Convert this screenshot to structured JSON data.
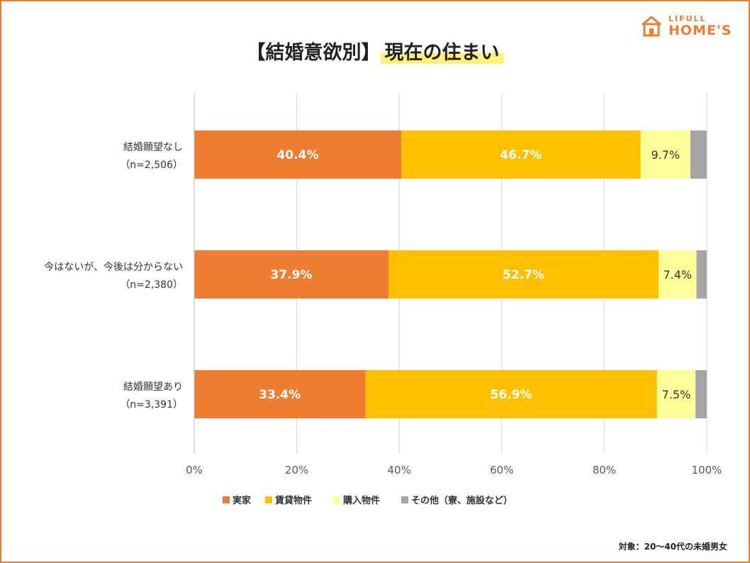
{
  "title": {
    "prefix": "【結婚意欲別】",
    "highlight": "現在の住まい"
  },
  "logo": {
    "top": "LIFULL",
    "bottom": "HOME'S",
    "icon": "house-icon",
    "color": "#ED7D31"
  },
  "footnote": "対象：20～40代の未婚男女",
  "chart_data": {
    "type": "bar",
    "orientation": "horizontal",
    "stacked": true,
    "percent": true,
    "categories": [
      {
        "label": "結婚願望なし",
        "n": "（n=2,506）"
      },
      {
        "label": "今はないが、今後は分からない",
        "n": "（n=2,380）"
      },
      {
        "label": "結婚願望あり",
        "n": "（n=3,391）"
      }
    ],
    "series": [
      {
        "name": "実家",
        "color": "#ED7D31",
        "label_color": "#ffffff",
        "values": [
          40.4,
          37.9,
          33.4
        ],
        "labels": [
          "40.4%",
          "37.9%",
          "33.4%"
        ]
      },
      {
        "name": "賃貸物件",
        "color": "#FFC000",
        "label_color": "#ffffff",
        "values": [
          46.7,
          52.7,
          56.9
        ],
        "labels": [
          "46.7%",
          "52.7%",
          "56.9%"
        ]
      },
      {
        "name": "購入物件",
        "color": "#FFFF99",
        "label_color": "#333333",
        "values": [
          9.7,
          7.4,
          7.5
        ],
        "labels": [
          "9.7%",
          "7.4%",
          "7.5%"
        ]
      },
      {
        "name": "その他（寮、施設など）",
        "color": "#A5A5A5",
        "label_color": "#333333",
        "values": [
          3.2,
          2.0,
          2.2
        ],
        "labels": [
          "",
          "",
          ""
        ]
      }
    ],
    "xlim": [
      0,
      100
    ],
    "x_ticks": [
      0,
      20,
      40,
      60,
      80,
      100
    ],
    "x_tick_labels": [
      "0%",
      "20%",
      "40%",
      "60%",
      "80%",
      "100%"
    ],
    "grid": true,
    "legend_position": "bottom"
  }
}
